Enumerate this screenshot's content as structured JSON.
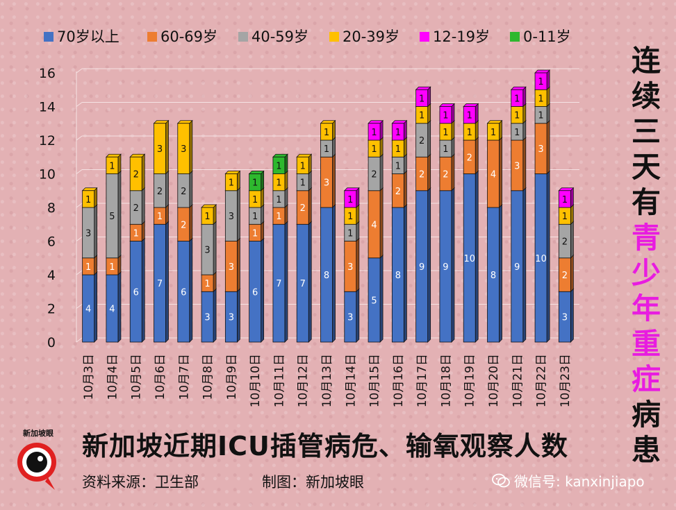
{
  "chart_data": {
    "type": "bar",
    "stacked": true,
    "categories": [
      "10月3日",
      "10月4日",
      "10月5日",
      "10月6日",
      "10月7日",
      "10月8日",
      "10月9日",
      "10月10日",
      "10月11日",
      "10月12日",
      "10月13日",
      "10月14日",
      "10月15日",
      "10月16日",
      "10月17日",
      "10月18日",
      "10月19日",
      "10月20日",
      "10月21日",
      "10月22日",
      "10月23日"
    ],
    "series": [
      {
        "name": "70岁以上",
        "color": "#4472c4",
        "values": [
          4,
          4,
          6,
          7,
          6,
          3,
          3,
          6,
          7,
          7,
          8,
          3,
          5,
          8,
          9,
          9,
          10,
          8,
          9,
          10,
          3
        ]
      },
      {
        "name": "60-69岁",
        "color": "#ed7d31",
        "values": [
          1,
          1,
          1,
          1,
          2,
          1,
          3,
          1,
          1,
          2,
          3,
          3,
          4,
          2,
          2,
          2,
          2,
          4,
          3,
          3,
          2
        ]
      },
      {
        "name": "40-59岁",
        "color": "#a5a5a5",
        "values": [
          3,
          5,
          2,
          2,
          2,
          3,
          3,
          1,
          1,
          1,
          1,
          1,
          2,
          1,
          2,
          1,
          0,
          0,
          1,
          1,
          2
        ]
      },
      {
        "name": "20-39岁",
        "color": "#ffc000",
        "values": [
          1,
          1,
          2,
          3,
          3,
          1,
          1,
          1,
          1,
          1,
          1,
          1,
          1,
          1,
          1,
          1,
          1,
          1,
          1,
          1,
          1
        ]
      },
      {
        "name": "12-19岁",
        "color": "#ff00ff",
        "values": [
          0,
          0,
          0,
          0,
          0,
          0,
          0,
          0,
          0,
          0,
          0,
          1,
          1,
          1,
          1,
          1,
          1,
          0,
          1,
          1,
          1
        ]
      },
      {
        "name": "0-11岁",
        "color": "#2eb82e",
        "values": [
          0,
          0,
          0,
          0,
          0,
          0,
          0,
          1,
          1,
          0,
          0,
          0,
          0,
          0,
          0,
          0,
          0,
          0,
          0,
          0,
          0
        ]
      }
    ],
    "ylim": [
      0,
      16
    ],
    "yticks": [
      0,
      2,
      4,
      6,
      8,
      10,
      12,
      14,
      16
    ],
    "legend_position": "top",
    "grid": true
  },
  "side_title": {
    "chars": [
      {
        "text": "连",
        "highlight": false
      },
      {
        "text": "续",
        "highlight": false
      },
      {
        "text": "三",
        "highlight": false
      },
      {
        "text": "天",
        "highlight": false
      },
      {
        "text": "有",
        "highlight": false
      },
      {
        "text": "青",
        "highlight": true
      },
      {
        "text": "少",
        "highlight": true
      },
      {
        "text": "年",
        "highlight": true
      },
      {
        "text": "重",
        "highlight": true
      },
      {
        "text": "症",
        "highlight": true
      },
      {
        "text": "病",
        "highlight": false
      },
      {
        "text": "患",
        "highlight": false
      }
    ]
  },
  "main_title": "新加坡近期ICU插管病危、输氧观察人数",
  "footer": {
    "source": "资料来源：卫生部",
    "made_by": "制图：新加坡眼",
    "wechat": "微信号: kanxinjiapo",
    "logo_text": "新加坡眼"
  },
  "colors": {
    "background": "#e3b1b4",
    "highlight": "#e81ce0",
    "grid": "#ffffff"
  }
}
